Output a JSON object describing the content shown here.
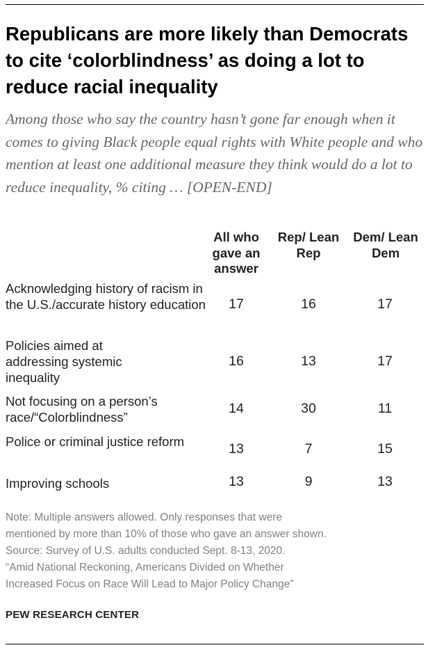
{
  "title": "Republicans are more likely than Democrats to cite ‘colorblindness’ as doing a lot to reduce racial inequality",
  "subtitle": "Among those who say the country hasn’t gone far enough when it comes to giving Black people equal rights with White people and who mention at least one additional measure they think would do a lot to reduce inequality, % citing … [OPEN-END]",
  "chart_data": {
    "type": "table",
    "columns": [
      "All who gave an answer",
      "Rep/ Lean Rep",
      "Dem/ Lean Dem"
    ],
    "rows": [
      {
        "label": "Acknowledging history of racism in the U.S./accurate history education",
        "values": [
          "17",
          "16",
          "17"
        ]
      },
      {
        "label": "Policies aimed at addressing systemic inequality",
        "values": [
          "16",
          "13",
          "17"
        ]
      },
      {
        "label": "Not focusing on a person’s race/“Colorblindness”",
        "values": [
          "14",
          "30",
          "11"
        ]
      },
      {
        "label": "Police or criminal justice reform",
        "values": [
          "13",
          "7",
          "15"
        ]
      },
      {
        "label": "Improving schools",
        "values": [
          "13",
          "9",
          "13"
        ]
      }
    ]
  },
  "notes": [
    "Note: Multiple answers allowed. Only responses that were",
    "mentioned by more than 10% of those who gave an answer shown.",
    "Source: Survey of U.S. adults conducted Sept. 8-13, 2020.",
    "“Amid National Reckoning, Americans Divided on Whether",
    "Increased Focus on Race Will Lead to Major Policy Change”"
  ],
  "brand": "PEW RESEARCH CENTER"
}
